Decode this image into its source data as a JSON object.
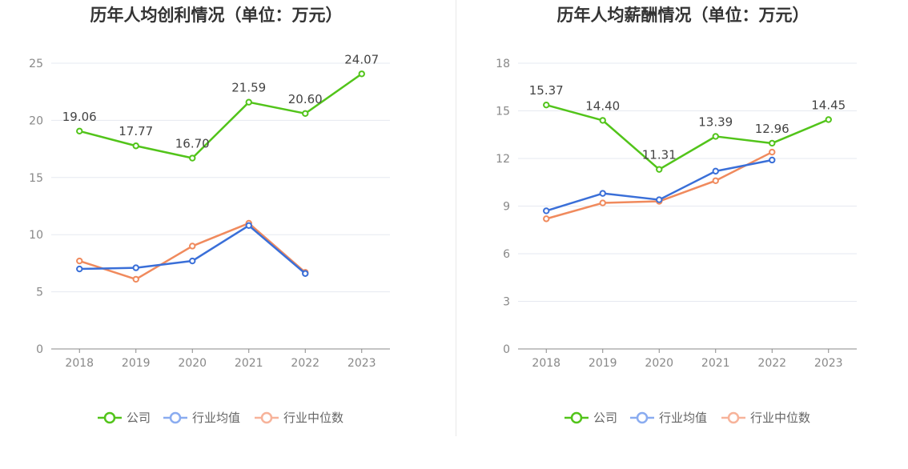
{
  "colors": {
    "company": "#52c41a",
    "industry_avg": "#3a6fd8",
    "industry_median": "#f08a5d",
    "legend_avg": "#8aacf0",
    "legend_median": "#f7b39a",
    "grid": "#e6e9f0",
    "axis": "#888888"
  },
  "chart_data": [
    {
      "type": "line",
      "title": "历年人均创利情况（单位：万元）",
      "categories": [
        "2018",
        "2019",
        "2020",
        "2021",
        "2022",
        "2023"
      ],
      "ylim": [
        0,
        25
      ],
      "yticks": [
        0,
        5,
        10,
        15,
        20,
        25
      ],
      "grid": true,
      "legend_position": "bottom",
      "series": [
        {
          "name": "公司",
          "values": [
            19.06,
            17.77,
            16.7,
            21.59,
            20.6,
            24.07
          ],
          "labels": [
            "19.06",
            "17.77",
            "16.70",
            "21.59",
            "20.60",
            "24.07"
          ]
        },
        {
          "name": "行业均值",
          "values": [
            7.0,
            7.1,
            7.7,
            10.8,
            6.6,
            null
          ]
        },
        {
          "name": "行业中位数",
          "values": [
            7.7,
            6.1,
            9.0,
            11.0,
            6.7,
            null
          ]
        }
      ]
    },
    {
      "type": "line",
      "title": "历年人均薪酬情况（单位：万元）",
      "categories": [
        "2018",
        "2019",
        "2020",
        "2021",
        "2022",
        "2023"
      ],
      "ylim": [
        0,
        18
      ],
      "yticks": [
        0,
        3,
        6,
        9,
        12,
        15,
        18
      ],
      "grid": true,
      "legend_position": "bottom",
      "series": [
        {
          "name": "公司",
          "values": [
            15.37,
            14.4,
            11.31,
            13.39,
            12.96,
            14.45
          ],
          "labels": [
            "15.37",
            "14.40",
            "11.31",
            "13.39",
            "12.96",
            "14.45"
          ]
        },
        {
          "name": "行业均值",
          "values": [
            8.7,
            9.8,
            9.4,
            11.2,
            11.9,
            null
          ]
        },
        {
          "name": "行业中位数",
          "values": [
            8.2,
            9.2,
            9.3,
            10.6,
            12.4,
            null
          ]
        }
      ]
    }
  ]
}
